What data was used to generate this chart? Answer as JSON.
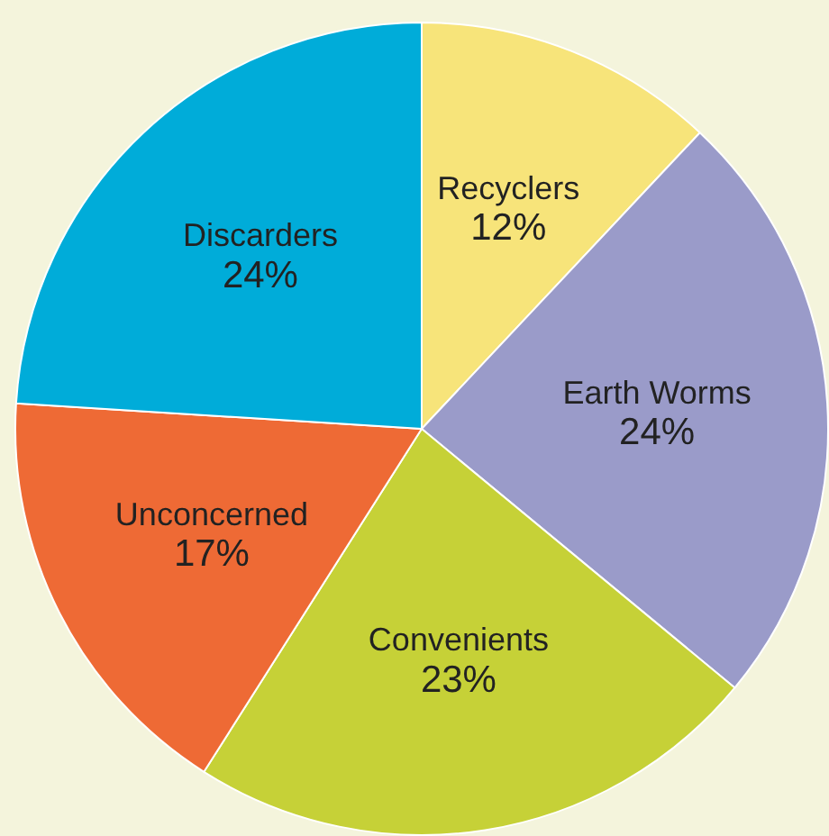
{
  "chart_data": {
    "type": "pie",
    "categories": [
      "Recyclers",
      "Earth Worms",
      "Convenients",
      "Unconcerned",
      "Discarders"
    ],
    "values": [
      12,
      24,
      23,
      17,
      24
    ],
    "colors": [
      "#f7e47a",
      "#9a9bc9",
      "#c6d137",
      "#ee6a35",
      "#00acd9"
    ],
    "value_labels": [
      "12%",
      "24%",
      "23%",
      "17%",
      "24%"
    ],
    "legend": false
  }
}
